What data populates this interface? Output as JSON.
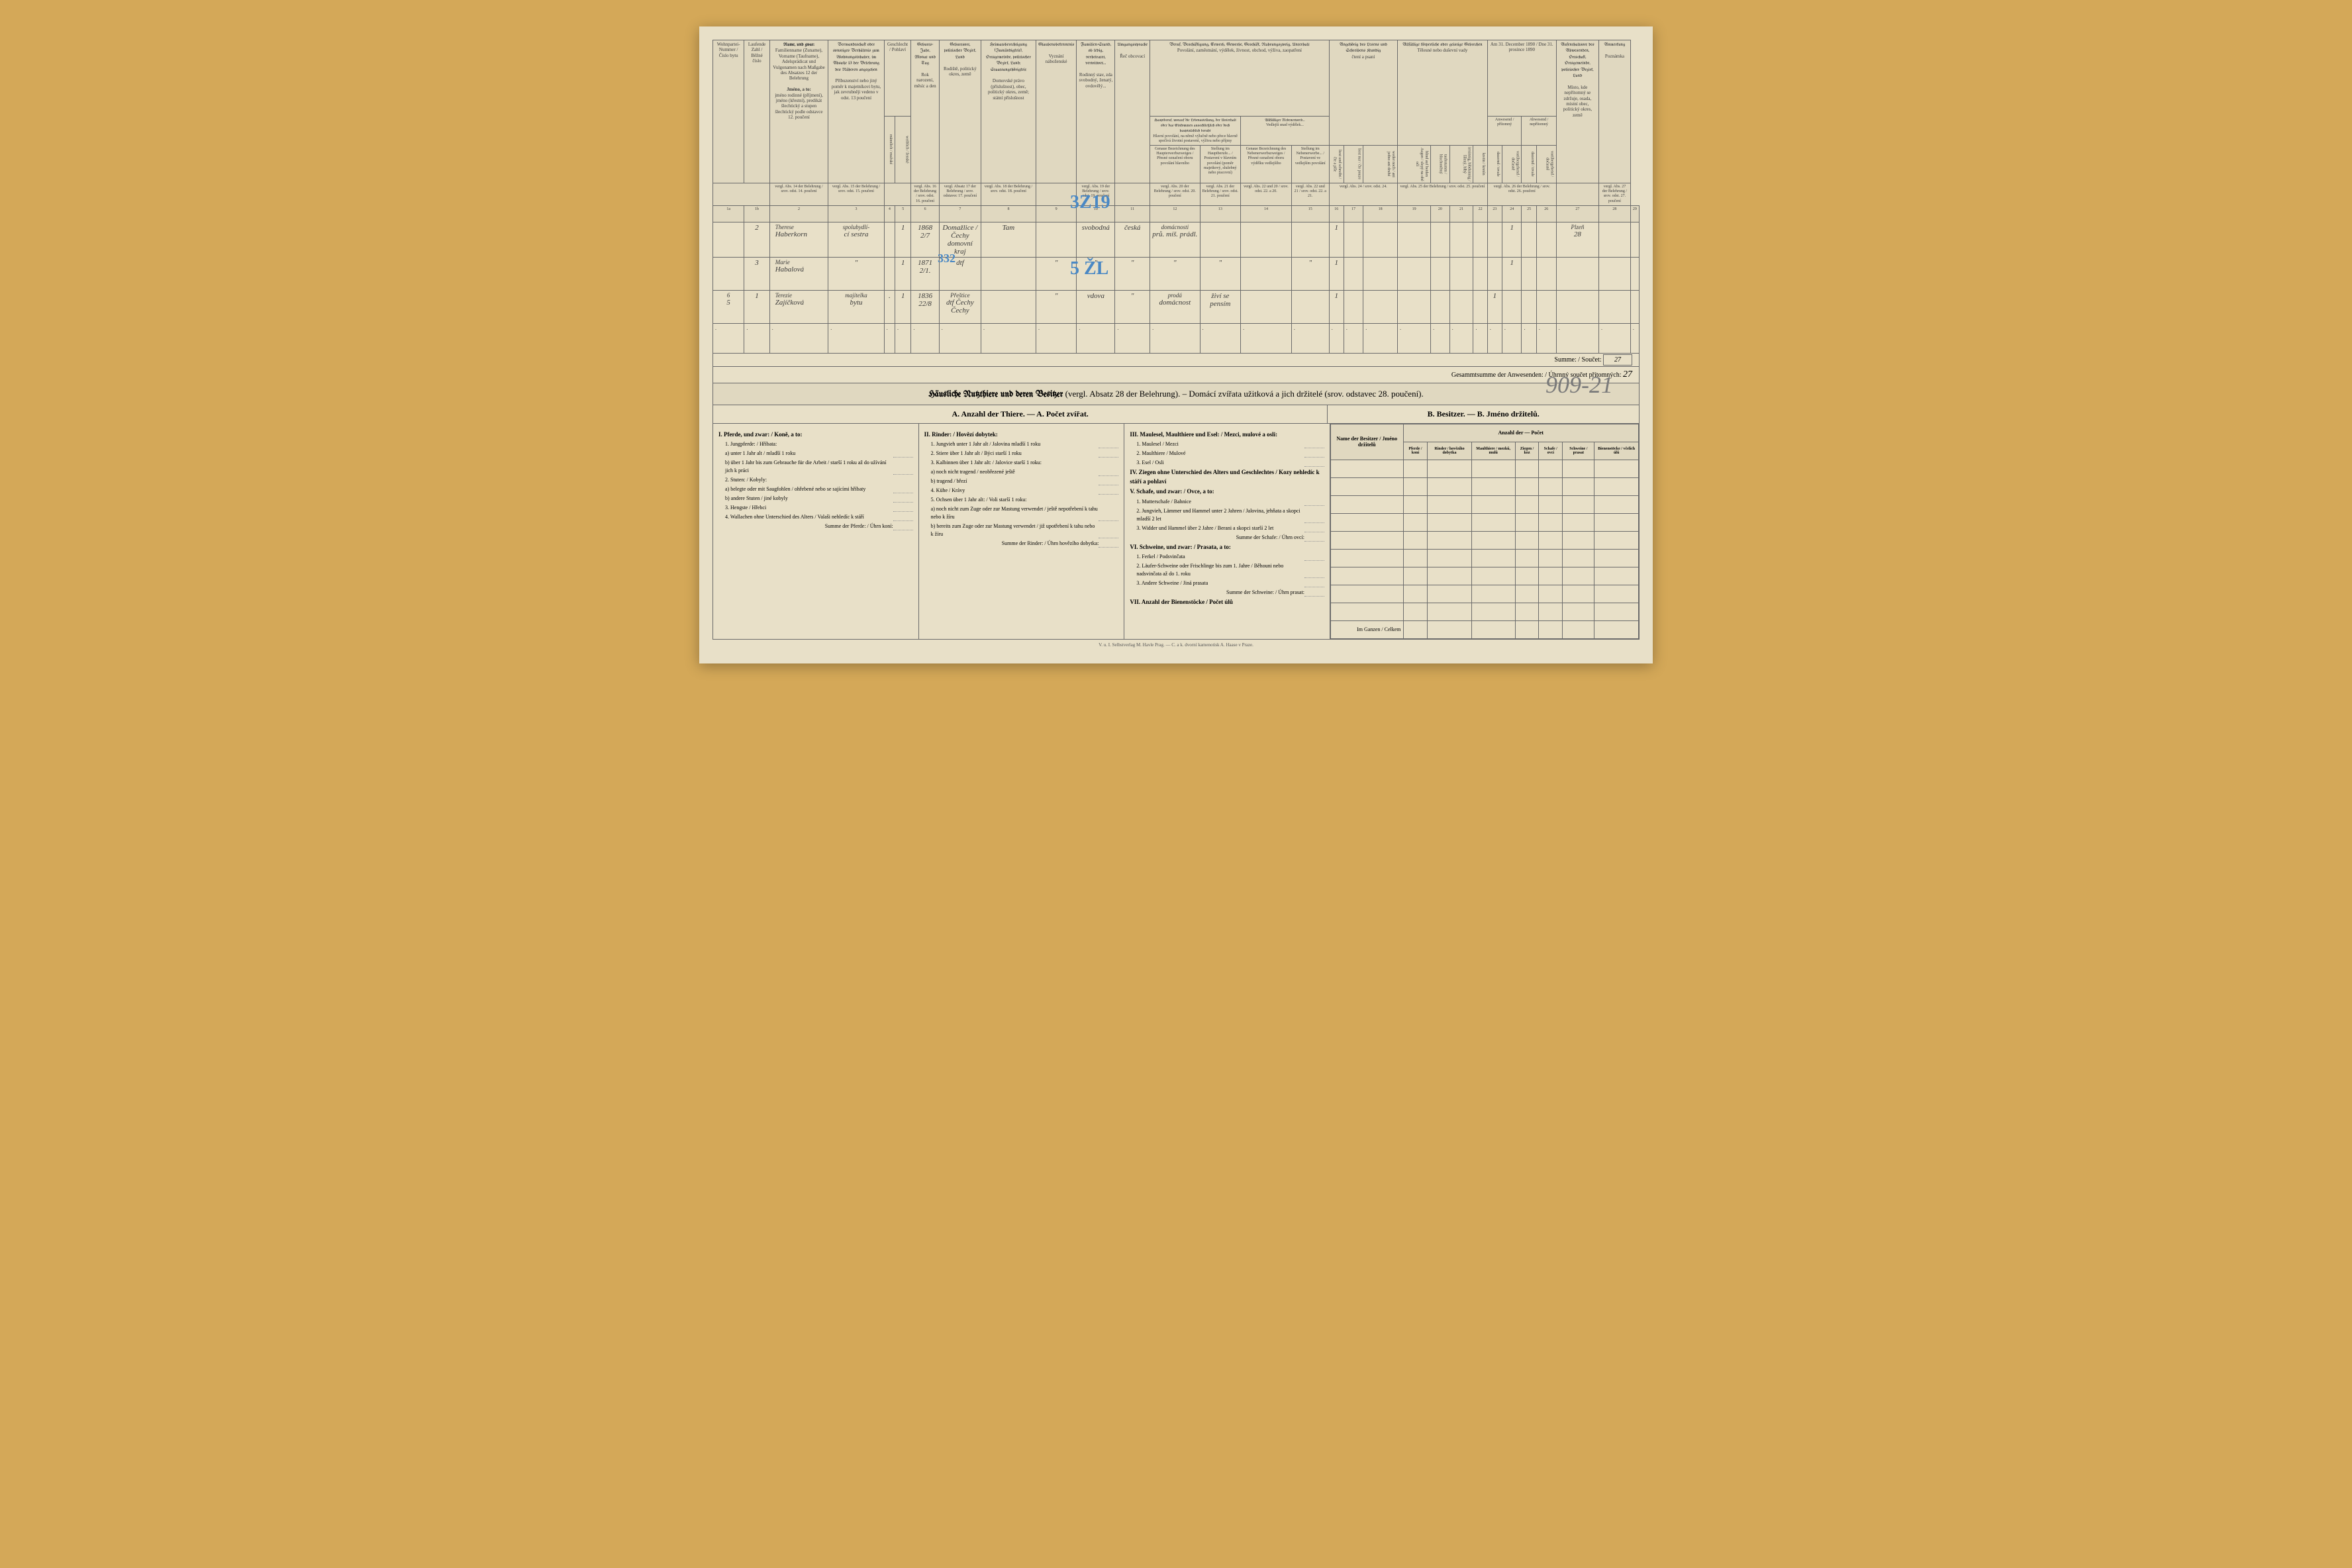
{
  "document": {
    "census_date": "Am 31. December 1890 / Dne 31. prosince 1890",
    "bg_color": "#e8e0c8",
    "border_color": "#6b6b6b",
    "text_color": "#3a3a3a",
    "handwriting_color": "#3a3a3a",
    "blue_pencil_color": "#4a88c4"
  },
  "headers": {
    "col1": "Wohnpartei-Nummer / Číslo bytu",
    "col2": "Laufende Zahl / Běžné číslo",
    "col3_title": "Name, und zwar:",
    "col3_de": "Familienname (Zuname), Vorname (Taufname), Adelsprädicat und Vulgonamen nach Maßgabe des Absatzes 12 der Belehrung",
    "col3_cz_title": "Jméno, a to:",
    "col3_cz": "jméno rodinné (příjmení), jméno (křestní), predikát šlechtický a stupen šlechtický podle odstavce 12. poučení",
    "col4_de": "Verwandtschaft oder sonstiges Verhältnis zum Wohnungsinhaber, im Absatze 13 der Belehrung des Näheren angegeben",
    "col4_cz": "Příbuzenství nebo jiný poměr k majetníkovi bytu, jak zevrubněji vedeno v odst. 13 poučení",
    "col5_title": "Geschlecht / Pohlaví",
    "col5_m": "männlich / mužské",
    "col5_f": "weiblich / ženské",
    "col6_de": "Geburts-Jahr, Monat und Tag",
    "col6_cz": "Rok narození, měsíc a den",
    "col7_de": "Geburtsort, politischer Bezirk, Land",
    "col7_cz": "Rodiště, politický okres, země",
    "col8_de": "Heimatsberechtigung (Zuständigkeit), Ortsgemeinde, politischer Bezirk, Land; Staatsangehörigkeit",
    "col8_cz": "Domovské právo (příslušnost), obec, politický okres, země; státní příslušnost",
    "col9_de": "Glaubensbekenntnis",
    "col9_cz": "Vyznání náboženské",
    "col10_de": "Familien-Stand, ob ledig, verheiratet, verwitwet...",
    "col10_cz": "Rodinný stav, zda svobodný, ženatý, ovdovělý...",
    "col11_de": "Umgangssprache",
    "col11_cz": "Řeč obcovací",
    "col12_group_de": "Beruf, Beschäftigung, Erwerb, Gewerbe, Geschäft, Nahrungszweig, Unterhalt",
    "col12_group_cz": "Povolání, zaměstnání, výdělek, živnost, obchod, výživa, zaopatření",
    "col12a_de": "Hauptberuf, worauf die Lebensstellung, der Unterhalt oder das Einkommen ausschließlich oder doch hauptsächlich beruht",
    "col12a_cz": "Hlavní povolání, na němž výlučně nebo přece hlavně spočívá životní postavení, výživa nebo příjmy",
    "col12a1": "Genaue Bezeichnung des Haupterwerbszweiges / Přesné označení oboru povolání hlavního",
    "col12a2": "Stellung im Hauptberufe... / Postavení v hlavním povolání (poměr majetkový, služebný nebo pracovní)",
    "col12b_de": "Allfälliger Nebenerwerb...",
    "col12b_cz": "Vedlejší snad výdělek...",
    "col12b1": "Genaue Bezeichnung des Nebenerwerbszweiges / Přesné označení oboru výdělku vedlejšího",
    "col12b2": "Stellung im Nebenerwerbe... / Postavení ve vedlejším povolání",
    "col13_de": "Angehörig des Lesens und Schreibens Kundig",
    "col13_cz": "čtení a psaní",
    "col13a": "liest und schreibt / čte a píše",
    "col13b": "liest nur / čte pouze",
    "col13c": "weder noch / ani jedno ani druhé",
    "col14_de": "Allfällige körperliche oder geistige Gebrechen",
    "col14_cz": "Tělesné nebo duševní vady",
    "col14a": "blind auf beiden Augen / slepý na obě oči",
    "col14b": "taubstumm / hluchoněmý",
    "col14c": "irrsinnig, blödsinnig / šílený, blbý",
    "col14d": "kretin / kretén",
    "col15a": "Anwesend / přítomný",
    "col15a1": "dauernd / trvale",
    "col15a2": "vorübergehend / dočasně",
    "col15b": "Abwesend / nepřítomný",
    "col15b1": "dauernd / trvale",
    "col15b2": "vorübergehend / dočasně",
    "col16_de": "Aufenthaltsort des Abwesenden, Ortschaft, Ortsgemeinde, politischer Bezirk, Land",
    "col16_cz": "Místo, kde nepřítomný se zdržuje, osada, místní obec, politický okres, země",
    "col17_de": "Anmerkung",
    "col17_cz": "Poznámka"
  },
  "ref_row": {
    "r1": "vergl. Abs. 14 der Belehrung / srov. odst. 14. poučení",
    "r2": "vergl. Abs. 15 der Belehrung / srov. odst. 15. poučení",
    "r3": "vergl. Abs. 16 der Belehrung / srov. odst. 16. poučení",
    "r4": "vergl. Absatz 17 der Belehrung / srov. odstavec 17. poučení",
    "r5": "vergl. Abs. 18 der Belehrung / srov. odst. 18. poučení",
    "r6": "vergl. Abs. 19 der Belehrung / srov. odst. 19. poučení",
    "r7": "vergl. Abs. 20 der Belehrung / srov. odst. 20. poučení",
    "r8": "vergl. Abs. 21 der Belehrung / srov. odst. 21. poučení",
    "r9": "vergl. Abs. 22 und 20 / srov. odst. 22. a 20.",
    "r10": "vergl. Abs. 22 und 21 / srov. odst. 22. a 21.",
    "r11": "vergl. Abs. 24 / srov. odst. 24.",
    "r12": "vergl. Abs. 25 der Belehrung / srov. odst. 25. poučení",
    "r13": "vergl. Abs. 26 der Belehrung / srov. odst. 26. poučení",
    "r14": "vergl. Abs. 27 der Belehrung / srov. odst. 27. poučení"
  },
  "col_numbers": [
    "1a",
    "1b",
    "2",
    "3",
    "4",
    "5",
    "6",
    "7",
    "8",
    "9",
    "10",
    "11",
    "12",
    "13",
    "14",
    "15",
    "16",
    "17",
    "18",
    "19",
    "20",
    "21",
    "22",
    "23",
    "24",
    "25",
    "26",
    "27",
    "28",
    "29"
  ],
  "persons": [
    {
      "apt": "",
      "seq": "2",
      "name_top": "Therese",
      "name": "Haberkorn",
      "relation_top": "spolubydlí-",
      "relation": "cí sestra",
      "sex_m": "",
      "sex_f": "1",
      "birth": "1868 2/7",
      "birthplace": "Domažlice / Čechy domovní kraj",
      "home": "Tam",
      "religion": "",
      "status": "svobodná",
      "language": "česká",
      "occupation_top": "domácnosti",
      "occupation": "prů. míš. prádl.",
      "position": "",
      "side_occ": "",
      "side_pos": "",
      "literacy": "1",
      "present_perm": "",
      "present_temp": "1",
      "absent": "",
      "place_top": "Plzeň",
      "place": "28"
    },
    {
      "apt": "",
      "seq": "3",
      "name_top": "Marie",
      "name": "Habalová",
      "relation": "\"",
      "sex_m": "",
      "sex_f": "1",
      "birth": "1871 2/1.",
      "birthplace": "dtf",
      "home": "",
      "religion": "\"",
      "status": "\"",
      "language": "\"",
      "occupation": "\"",
      "position": "\"",
      "side_occ": "",
      "side_pos": "\"",
      "literacy": "1",
      "present_perm": "",
      "present_temp": "1",
      "absent": "",
      "place": ""
    },
    {
      "apt_top": "6",
      "apt": "5",
      "seq": "1",
      "name_top": "Terezie",
      "name": "Zajíčková",
      "relation_top": "majitelka",
      "relation": "bytu",
      "sex_m": ".",
      "sex_f": "1",
      "birth": "1836 22/8",
      "birthplace_top": "Přeštice",
      "birthplace": "dtf Čechy Čechy",
      "home": "",
      "religion": "\"",
      "status": "vdova",
      "language": "\"",
      "occupation_top": "prodá",
      "occupation": "domácnost",
      "position": "živí se pensím",
      "side_occ": "",
      "side_pos": "",
      "literacy": "1",
      "present_perm": "1",
      "present_temp": "",
      "absent": "",
      "place": ""
    }
  ],
  "blue_marks": {
    "mark1": "3Z19",
    "mark2": "5 ŽL",
    "mark3": "332"
  },
  "sums": {
    "summe_label": "Summe: / Součet:",
    "summe_value": "27",
    "gesamt_label": "Gesammtsumme der Anwesenden: / Úhrnný součet přítomných:",
    "gesamt_value": "27",
    "page_number": "909-21"
  },
  "animals_section": {
    "title_de": "Häusliche Nutzthiere und deren Besitzer",
    "title_ref_de": "(vergl. Absatz 28 der Belehrung).",
    "title_cz": "Domácí zvířata užitková a jich držitelé",
    "title_ref_cz": "(srov. odstavec 28. poučení).",
    "section_a": "A. Anzahl der Thiere. — A. Počet zvířat.",
    "section_b": "B. Besitzer. — B. Jméno držitelů.",
    "owners_header_count": "Anzahl der — Počet",
    "owners_name": "Name der Besitzer / Jméno držitelů",
    "owners_cols": [
      "Pferde / koní",
      "Rinder / hovězího dobytka",
      "Maulthiere / mezků, mulů",
      "Ziegen / koz",
      "Schafe / ovcí",
      "Schweine / prasat",
      "Bienenstöcke / včelích úlů"
    ]
  },
  "animals_col1": {
    "title": "I. Pferde, und zwar: / Koně, a to:",
    "i1": "1. Jungpferde: / Hříbata:",
    "i1a": "a) unter 1 Jahr alt / mladší 1 roku",
    "i1b": "b) über 1 Jahr bis zum Gebrauche für die Arbeit / starší 1 roku až do užívání jich k práci",
    "i2": "2. Stuten: / Kobyly:",
    "i2a": "a) belegte oder mit Saugfohlen / ohřebené nebo se sajícími hříbaty",
    "i2b": "b) andere Stuten / jiné kobyly",
    "i3": "3. Hengste / Hřebci",
    "i4": "4. Wallachen ohne Unterschied des Alters / Valaši nehledíc k stáří",
    "sum": "Summe der Pferde: / Úhrn koní:"
  },
  "animals_col2": {
    "title": "II. Rinder: / Hovězí dobytek:",
    "i1": "1. Jungvieh unter 1 Jahr alt / Jalovina mladší 1 roku",
    "i2": "2. Stiere über 1 Jahr alt / Býci starší 1 roku",
    "i3": "3. Kalbinnen über 1 Jahr alt: / Jalovice starší 1 roku:",
    "i3a": "a) noch nicht tragend / neobřezené ještě",
    "i3b": "b) tragend / březí",
    "i4": "4. Kühe / Krávy",
    "i5": "5. Ochsen über 1 Jahr alt: / Voli starší 1 roku:",
    "i5a": "a) noch nicht zum Zuge oder zur Mastung verwendet / ještě nepotřebení k tahu nebo k žíru",
    "i5b": "b) bereits zum Zuge oder zur Mastung verwendet / již upotřebení k tahu nebo k žíru",
    "sum": "Summe der Rinder: / Úhrn hovězího dobytka:"
  },
  "animals_col3": {
    "title3": "III. Maulesel, Maulthiere und Esel: / Mezci, mulové a osli:",
    "i3_1": "1. Maulesel / Mezci",
    "i3_2": "2. Maulthiere / Mulové",
    "i3_3": "3. Esel / Osli",
    "title4": "IV. Ziegen ohne Unterschied des Alters und Geschlechtes / Kozy nehledíc k stáří a pohlaví",
    "title5": "V. Schafe, und zwar: / Ovce, a to:",
    "i5_1": "1. Mutterschafe / Bahnice",
    "i5_2": "2. Jungvieh, Lämmer und Hammel unter 2 Jahren / Jalovina, jehňata a skopci mladší 2 let",
    "i5_3": "3. Widder und Hammel über 2 Jahre / Berani a skopci starší 2 let",
    "sum5": "Summe der Schafe: / Úhrn ovcí:",
    "title6": "VI. Schweine, und zwar: / Prasata, a to:",
    "i6_1": "1. Ferkel / Podsvinčata",
    "i6_2": "2. Läufer-Schweine oder Frischlinge bis zum 1. Jahre / Běhouni nebo nadsvinčata až do 1. roku",
    "i6_3": "3. Andere Schweine / Jiná prasata",
    "sum6": "Summe der Schweine: / Úhrn prasat:",
    "title7": "VII. Anzahl der Bienenstöcke / Počet úlů"
  },
  "owners_footer": "Im Ganzen / Celkem",
  "footer": "V. u. I. Selbstverlag M. Havle Prag. — C. a k. dvorní kamenotisk A. Haase v Praze."
}
